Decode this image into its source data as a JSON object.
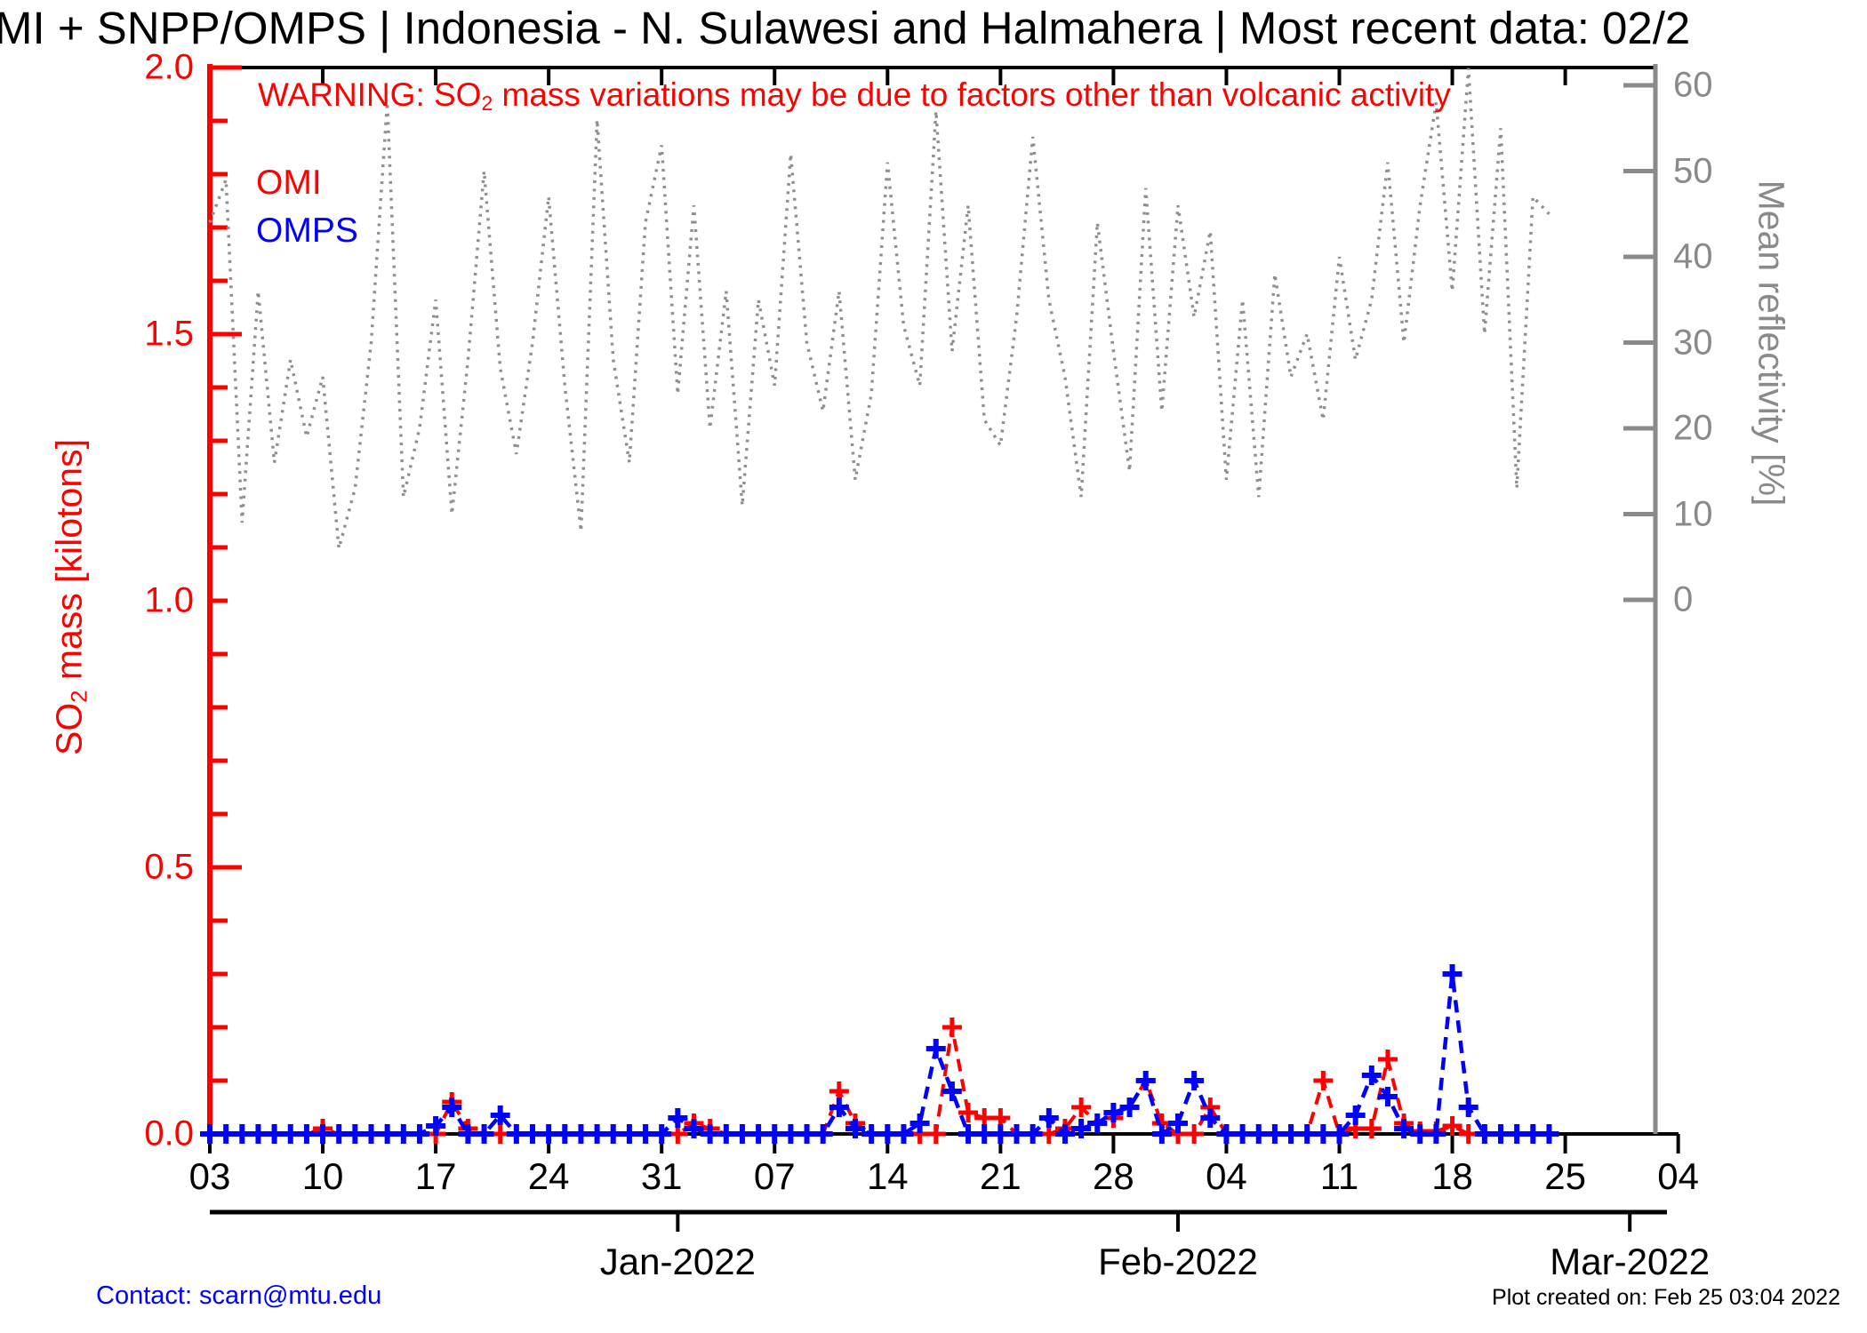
{
  "title": "MI + SNPP/OMPS | Indonesia - N. Sulawesi and Halmahera | Most recent data: 02/2",
  "warning": {
    "pre": "WARNING: SO",
    "sub": "2",
    "post": " mass variations may be due to factors other than volcanic activity"
  },
  "legend": [
    {
      "label": "OMI",
      "color": "#ff0000"
    },
    {
      "label": "OMPS",
      "color": "#0000ff"
    }
  ],
  "axes": {
    "left": {
      "label_pre": "SO",
      "label_sub": "2",
      "label_post": " mass [kilotons]",
      "ticks": [
        "0.0",
        "0.5",
        "1.0",
        "1.5",
        "2.0"
      ],
      "color": "#ff0000"
    },
    "right": {
      "label": "Mean reflectivity [%]",
      "ticks": [
        "0",
        "10",
        "20",
        "30",
        "40",
        "50",
        "60"
      ],
      "color": "#8a8a8a"
    },
    "x": {
      "week_labels": [
        {
          "day": 0,
          "label": "03"
        },
        {
          "day": 7,
          "label": "10"
        },
        {
          "day": 14,
          "label": "17"
        },
        {
          "day": 21,
          "label": "24"
        },
        {
          "day": 28,
          "label": "31"
        },
        {
          "day": 35,
          "label": "07"
        },
        {
          "day": 42,
          "label": "14"
        },
        {
          "day": 49,
          "label": "21"
        },
        {
          "day": 56,
          "label": "28"
        },
        {
          "day": 63,
          "label": "04"
        },
        {
          "day": 70,
          "label": "11"
        },
        {
          "day": 77,
          "label": "18"
        },
        {
          "day": 84,
          "label": "25"
        },
        {
          "day": 91,
          "label": "04"
        }
      ],
      "month_labels": [
        {
          "day": 29,
          "label": "Jan-2022"
        },
        {
          "day": 60,
          "label": "Feb-2022"
        },
        {
          "day": 88,
          "label": "Mar-2022"
        }
      ]
    }
  },
  "footer": {
    "contact": "Contact: scarn@mtu.edu",
    "created": "Plot created on: Feb 25 03:04 2022"
  },
  "chart_data": {
    "type": "line",
    "title": "MI + SNPP/OMPS | Indonesia - N. Sulawesi and Halmahera | Most recent data: 02/2",
    "x_start": "2021-12-03",
    "x_end": "2022-03-04",
    "x_days_shown": 92,
    "so2_ylim": [
      0,
      2
    ],
    "so2_ylabel": "SO2 mass [kilotons]",
    "reflectivity_ylim": [
      0,
      60
    ],
    "reflectivity_ylabel": "Mean reflectivity [%]",
    "grid": false,
    "legend_position": "top-left",
    "series": [
      {
        "name": "OMI",
        "color": "#ff0000",
        "axis": "left",
        "units": "kilotons",
        "marker": "plus",
        "line_style": "dashed",
        "daily_values": [
          0,
          0,
          0,
          0,
          0,
          0,
          0,
          0.01,
          0,
          0,
          0,
          0,
          0,
          0,
          0,
          0.06,
          0.01,
          0,
          0,
          0,
          0,
          0,
          0,
          0,
          0,
          0,
          0,
          0,
          0,
          0,
          0.02,
          0.01,
          0,
          0,
          0,
          0,
          0,
          0,
          0,
          0.08,
          0.02,
          0,
          0,
          0,
          0,
          0,
          0.2,
          0.04,
          0.03,
          0.03,
          0,
          0,
          0,
          0.01,
          0.05,
          0.02,
          0.03,
          0.05,
          0.1,
          0.02,
          0,
          0,
          0.05,
          0,
          0,
          0,
          0,
          0,
          0,
          0.1,
          0,
          0.01,
          0.01,
          0.14,
          0.02,
          0.005,
          0.005,
          0.015,
          0,
          null,
          null,
          null,
          null,
          null
        ]
      },
      {
        "name": "OMPS",
        "color": "#0000ff",
        "axis": "left",
        "units": "kilotons",
        "marker": "plus",
        "line_style": "dashed",
        "daily_values": [
          0,
          0,
          0,
          0,
          0,
          0,
          0,
          0,
          0,
          0,
          0,
          0,
          0,
          0,
          0.015,
          0.05,
          0,
          0,
          0.035,
          0,
          0,
          0,
          0,
          0,
          0,
          0,
          0,
          0,
          0,
          0.03,
          0.01,
          0,
          0,
          0,
          0,
          0,
          0,
          0,
          0,
          0.05,
          0.01,
          0,
          0,
          0,
          0.02,
          0.16,
          0.08,
          0,
          0,
          0,
          0,
          0,
          0.03,
          0,
          0.01,
          0.02,
          0.04,
          0.05,
          0.1,
          0,
          0.02,
          0.1,
          0.03,
          0,
          0,
          0,
          0,
          0,
          0,
          0,
          0,
          0.035,
          0.11,
          0.07,
          0.01,
          0,
          0,
          0.3,
          0.05,
          0,
          0,
          0,
          0,
          0
        ]
      },
      {
        "name": "Mean reflectivity",
        "color": "#8f8f8f",
        "axis": "right",
        "units": "%",
        "marker": "none",
        "line_style": "dotted",
        "daily_values": [
          44,
          49,
          9,
          36,
          16,
          28,
          19,
          26,
          6,
          13,
          30,
          58,
          12,
          20,
          35,
          10,
          28,
          50,
          27,
          17,
          30,
          47,
          25,
          8,
          56,
          28,
          16,
          44,
          53,
          24,
          46,
          20,
          36,
          11,
          35,
          25,
          52,
          30,
          22,
          36,
          14,
          24,
          51,
          32,
          25,
          57,
          29,
          46,
          21,
          18,
          33,
          54,
          35,
          26,
          12,
          44,
          29,
          15,
          48,
          22,
          46,
          33,
          43,
          14,
          35,
          12,
          38,
          26,
          31,
          21,
          40,
          28,
          35,
          51,
          30,
          46,
          58,
          36,
          62,
          31,
          55,
          13,
          47,
          45
        ]
      }
    ]
  }
}
